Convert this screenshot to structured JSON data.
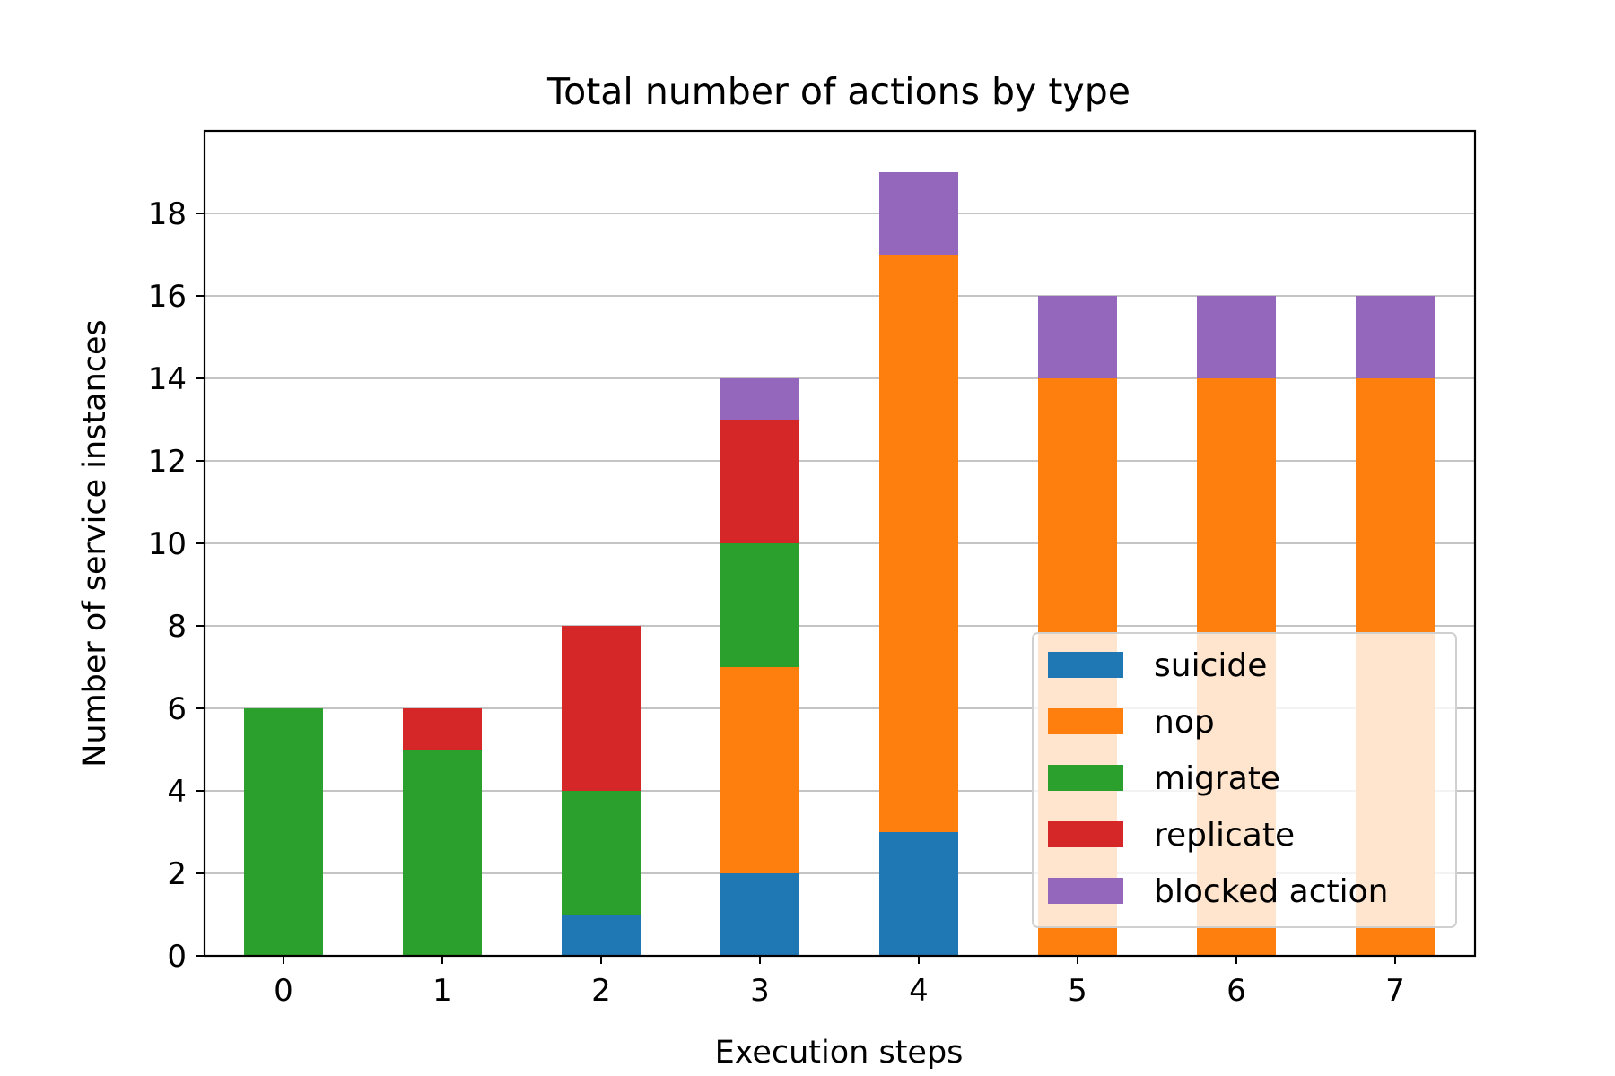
{
  "chart_data": {
    "type": "bar",
    "stacked": true,
    "title": "Total number of actions by type",
    "xlabel": "Execution steps",
    "ylabel": "Number of service instances",
    "categories": [
      "0",
      "1",
      "2",
      "3",
      "4",
      "5",
      "6",
      "7"
    ],
    "ylim": [
      0,
      20
    ],
    "yticks": [
      0,
      2,
      4,
      6,
      8,
      10,
      12,
      14,
      16,
      18
    ],
    "grid": "horizontal",
    "legend_position": "lower-right",
    "series": [
      {
        "name": "suicide",
        "color": "#1f77b4",
        "values": [
          0,
          0,
          1,
          2,
          3,
          0,
          0,
          0
        ]
      },
      {
        "name": "nop",
        "color": "#ff7f0e",
        "values": [
          0,
          0,
          0,
          5,
          14,
          14,
          14,
          14
        ]
      },
      {
        "name": "migrate",
        "color": "#2ca02c",
        "values": [
          6,
          5,
          3,
          3,
          0,
          0,
          0,
          0
        ]
      },
      {
        "name": "replicate",
        "color": "#d62728",
        "values": [
          0,
          1,
          4,
          3,
          0,
          0,
          0,
          0
        ]
      },
      {
        "name": "blocked action",
        "color": "#9467bd",
        "values": [
          0,
          0,
          0,
          1,
          2,
          2,
          2,
          2
        ]
      }
    ]
  }
}
